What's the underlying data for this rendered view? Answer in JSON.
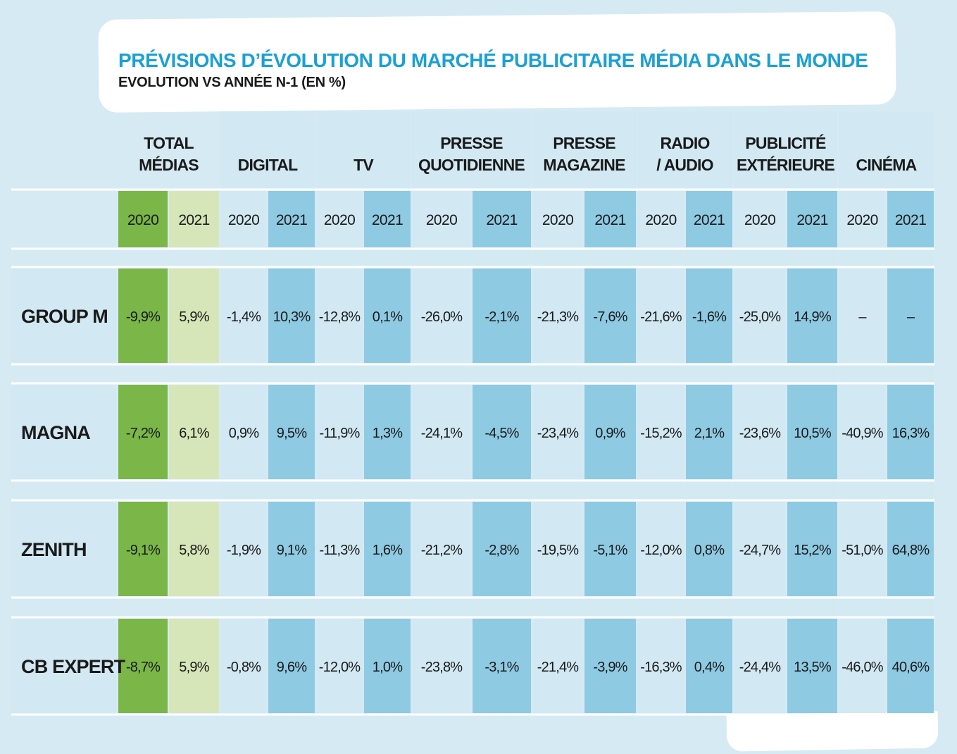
{
  "title": "PRÉVISIONS D’ÉVOLUTION DU MARCHÉ PUBLICITAIRE MÉDIA DANS LE MONDE",
  "subtitle": "EVOLUTION VS ANNÉE N-1 (EN %)",
  "colors": {
    "background": "#d6eaf4",
    "cell_light": "#d2e9f3",
    "cell_blue": "#8fcae3",
    "total_2020": "#7ab648",
    "total_2021": "#d7e6b8",
    "title": "#1aa0d5"
  },
  "chart_data": {
    "type": "table",
    "title": "PRÉVISIONS D’ÉVOLUTION DU MARCHÉ PUBLICITAIRE MÉDIA DANS LE MONDE",
    "subtitle": "EVOLUTION VS ANNÉE N-1 (EN %)",
    "years": [
      "2020",
      "2021"
    ],
    "groups": [
      {
        "key": "total",
        "label": [
          "TOTAL",
          "MÉDIAS"
        ]
      },
      {
        "key": "digital",
        "label": [
          "DIGITAL"
        ]
      },
      {
        "key": "tv",
        "label": [
          "TV"
        ]
      },
      {
        "key": "presse_quotidienne",
        "label": [
          "PRESSE",
          "QUOTIDIENNE"
        ]
      },
      {
        "key": "presse_magazine",
        "label": [
          "PRESSE",
          "MAGAZINE"
        ]
      },
      {
        "key": "radio_audio",
        "label": [
          "RADIO",
          "/ AUDIO"
        ]
      },
      {
        "key": "publicite_exterieure",
        "label": [
          "PUBLICITÉ",
          "EXTÉRIEURE"
        ]
      },
      {
        "key": "cinema",
        "label": [
          "CINÉMA"
        ]
      }
    ],
    "rows": [
      {
        "name": "GROUP M",
        "values": [
          "-9,9%",
          "5,9%",
          "-1,4%",
          "10,3%",
          "-12,8%",
          "0,1%",
          "-26,0%",
          "-2,1%",
          "-21,3%",
          "-7,6%",
          "-21,6%",
          "-1,6%",
          "-25,0%",
          "14,9%",
          "–",
          "–"
        ]
      },
      {
        "name": "MAGNA",
        "values": [
          "-7,2%",
          "6,1%",
          "0,9%",
          "9,5%",
          "-11,9%",
          "1,3%",
          "-24,1%",
          "-4,5%",
          "-23,4%",
          "0,9%",
          "-15,2%",
          "2,1%",
          "-23,6%",
          "10,5%",
          "-40,9%",
          "16,3%"
        ]
      },
      {
        "name": "ZENITH",
        "values": [
          "-9,1%",
          "5,8%",
          "-1,9%",
          "9,1%",
          "-11,3%",
          "1,6%",
          "-21,2%",
          "-2,8%",
          "-19,5%",
          "-5,1%",
          "-12,0%",
          "0,8%",
          "-24,7%",
          "15,2%",
          "-51,0%",
          "64,8%"
        ]
      },
      {
        "name": "CB EXPERT",
        "values": [
          "-8,7%",
          "5,9%",
          "-0,8%",
          "9,6%",
          "-12,0%",
          "1,0%",
          "-23,8%",
          "-3,1%",
          "-21,4%",
          "-3,9%",
          "-16,3%",
          "0,4%",
          "-24,4%",
          "13,5%",
          "-46,0%",
          "40,6%"
        ]
      }
    ]
  }
}
